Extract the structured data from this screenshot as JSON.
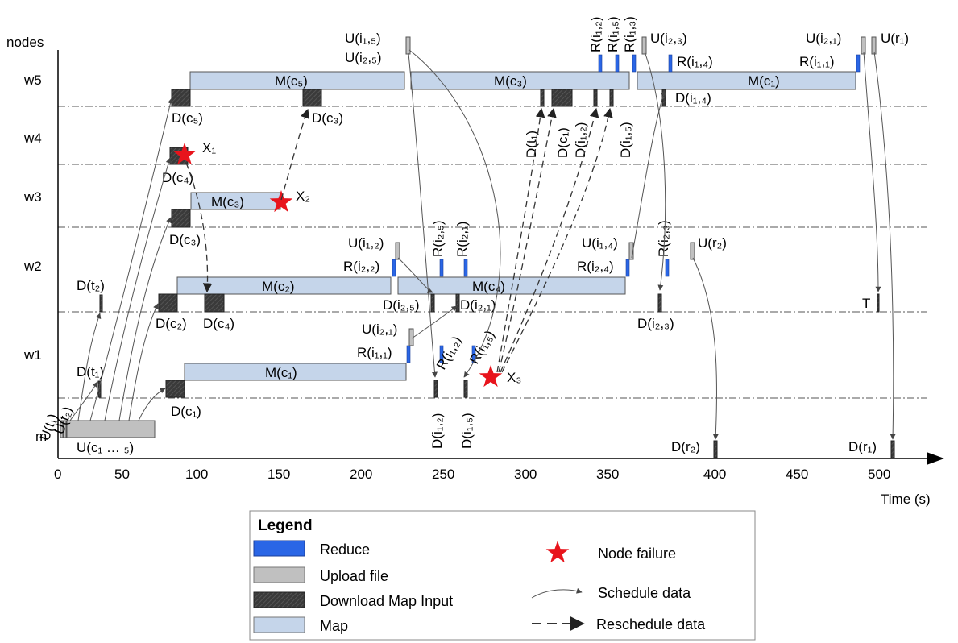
{
  "axis": {
    "nodes_label": "nodes",
    "time_label": "Time (s)",
    "ticks": [
      "0",
      "50",
      "100",
      "150",
      "200",
      "250",
      "300",
      "350",
      "400",
      "450",
      "500"
    ]
  },
  "lanes": [
    "w5",
    "w4",
    "w3",
    "w2",
    "w1",
    "m"
  ],
  "maps": {
    "w5_c5": "M(c₅)",
    "w5_c3": "M(c₃)",
    "w5_c1": "M(c₁)",
    "w3_c3": "M(c₃)",
    "w2_c2": "M(c₂)",
    "w2_c4": "M(c₄)",
    "w1_c1": "M(c₁)"
  },
  "labels": {
    "U_i15": "U(i₁,₅)",
    "U_i25": "U(i₂,₅)",
    "R_i12": "R(i₁,₂)",
    "R_i15": "R(i₁,₅)",
    "R_i13": "R(i₁,₃)",
    "U_i23": "U(i₂,₃)",
    "R_i14": "R(i₁,₄)",
    "U_i21_top": "U(i₂,₁)",
    "U_r1": "U(r₁)",
    "R_i11_top": "R(i₁,₁)",
    "D_c5": "D(c₅)",
    "D_c3_w5": "D(c₃)",
    "D_i14": "D(i₁,₄)",
    "D_t1_w5": "D(t₁)",
    "D_c1_w5": "D(c₁)",
    "D_i12_w5": "D(i₁,₂)",
    "D_i15_w5": "D(i₁,₅)",
    "X1": "X₁",
    "D_c4_w4": "D(c₄)",
    "X2": "X₂",
    "D_c3_w3": "D(c₃)",
    "U_i12": "U(i₁,₂)",
    "R_i25": "R(i₂,₅)",
    "R_i21": "R(i₂,₁)",
    "R_i22": "R(i₂,₂)",
    "U_i14": "U(i₁,₄)",
    "R_i24": "R(i₂,₄)",
    "R_i23": "R(i₂,₃)",
    "U_r2": "U(r₂)",
    "D_t2": "D(t₂)",
    "D_c2": "D(c₂)",
    "D_c4_w2": "D(c₄)",
    "D_i25": "D(i₂,₅)",
    "D_i21": "D(i₂,₁)",
    "D_i23": "D(i₂,₃)",
    "T": "T",
    "U_i21_w1": "U(i₂,₁)",
    "R_i11_w1": "R(i₁,₁)",
    "R_i12_w1": "R(i₁,₂)",
    "R_i15_w1": "R(i₁,₅)",
    "D_t1_w1": "D(t₁)",
    "X3": "X₃",
    "D_c1_w1": "D(c₁)",
    "D_i12_w1": "D(i₁,₂)",
    "D_i15_w1": "D(i₁,₅)",
    "U_t1": "U(t₁)",
    "U_t2": "U(t₂)",
    "U_c": "U(c₁ … ₅)",
    "D_r2": "D(r₂)",
    "D_r1": "D(r₁)"
  },
  "legend": {
    "title": "Legend",
    "reduce": "Reduce",
    "upload": "Upload file",
    "download": "Download Map Input",
    "map": "Map",
    "failure": "Node failure",
    "schedule": "Schedule data",
    "reschedule": "Reschedule data"
  },
  "colors": {
    "map": "#c5d5ea",
    "reduce": "#2a66e6",
    "upload": "#c0c0c0",
    "download": "#3a3a3a",
    "failure": "#e8141c"
  }
}
